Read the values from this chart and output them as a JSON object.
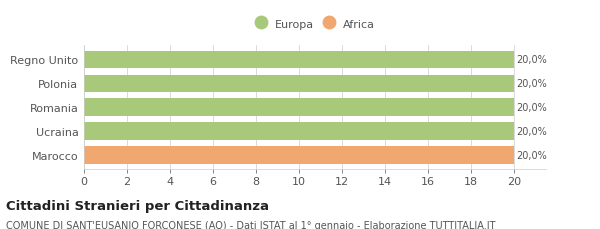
{
  "categories": [
    "Marocco",
    "Ucraina",
    "Romania",
    "Polonia",
    "Regno Unito"
  ],
  "values": [
    20,
    20,
    20,
    20,
    20
  ],
  "colors": [
    "#f0a870",
    "#a8c87a",
    "#a8c87a",
    "#a8c87a",
    "#a8c87a"
  ],
  "bar_labels": [
    "20,0%",
    "20,0%",
    "20,0%",
    "20,0%",
    "20,0%"
  ],
  "legend_labels": [
    "Europa",
    "Africa"
  ],
  "legend_colors": [
    "#a8c87a",
    "#f0a870"
  ],
  "xlim": [
    0,
    20
  ],
  "xticks": [
    0,
    2,
    4,
    6,
    8,
    10,
    12,
    14,
    16,
    18,
    20
  ],
  "title_main": "Cittadini Stranieri per Cittadinanza",
  "title_sub": "COMUNE DI SANT'EUSANIO FORCONESE (AQ) - Dati ISTAT al 1° gennaio - Elaborazione TUTTITALIA.IT",
  "grid_color": "#cccccc",
  "bar_label_fontsize": 7.0,
  "axis_label_fontsize": 8.0,
  "title_main_fontsize": 9.5,
  "title_sub_fontsize": 7.0,
  "background_color": "#ffffff",
  "bar_height": 0.72,
  "label_color": "#555555"
}
